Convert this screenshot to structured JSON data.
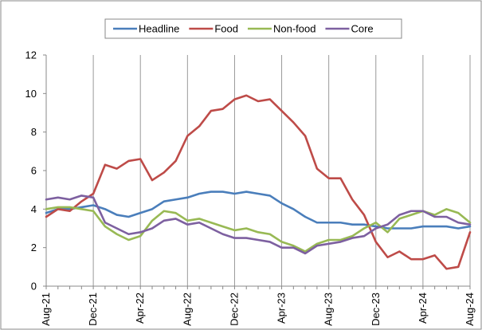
{
  "chart_data": {
    "type": "line",
    "title": "",
    "xlabel": "",
    "ylabel": "",
    "ylim": [
      0,
      12
    ],
    "yticks": [
      0,
      2,
      4,
      6,
      8,
      10,
      12
    ],
    "grid": "vertical",
    "legend": "top-center",
    "x": [
      "Aug-21",
      "Sep-21",
      "Oct-21",
      "Nov-21",
      "Dec-21",
      "Jan-22",
      "Feb-22",
      "Mar-22",
      "Apr-22",
      "May-22",
      "Jun-22",
      "Jul-22",
      "Aug-22",
      "Sep-22",
      "Oct-22",
      "Nov-22",
      "Dec-22",
      "Jan-23",
      "Feb-23",
      "Mar-23",
      "Apr-23",
      "May-23",
      "Jun-23",
      "Jul-23",
      "Aug-23",
      "Sep-23",
      "Oct-23",
      "Nov-23",
      "Dec-23",
      "Jan-24",
      "Feb-24",
      "Mar-24",
      "Apr-24",
      "May-24",
      "Jun-24",
      "Jul-24",
      "Aug-24"
    ],
    "x_tick_labels": [
      "Aug-21",
      "Dec-21",
      "Apr-22",
      "Aug-22",
      "Dec-22",
      "Apr-23",
      "Aug-23",
      "Dec-23",
      "Apr-24",
      "Aug-24"
    ],
    "series": [
      {
        "name": "Headline",
        "color": "#4a7ebb",
        "values": [
          3.8,
          4.0,
          4.0,
          4.1,
          4.2,
          4.0,
          3.7,
          3.6,
          3.8,
          4.0,
          4.4,
          4.5,
          4.6,
          4.8,
          4.9,
          4.9,
          4.8,
          4.9,
          4.8,
          4.7,
          4.3,
          4.0,
          3.6,
          3.3,
          3.3,
          3.3,
          3.2,
          3.2,
          3.1,
          3.0,
          3.0,
          3.0,
          3.1,
          3.1,
          3.1,
          3.0,
          3.1
        ]
      },
      {
        "name": "Food",
        "color": "#be4b48",
        "values": [
          3.6,
          4.0,
          3.9,
          4.4,
          4.8,
          6.3,
          6.1,
          6.5,
          6.6,
          5.5,
          5.9,
          6.5,
          7.8,
          8.3,
          9.1,
          9.2,
          9.7,
          9.9,
          9.6,
          9.7,
          9.1,
          8.5,
          7.8,
          6.1,
          5.6,
          5.6,
          4.5,
          3.7,
          2.3,
          1.5,
          1.8,
          1.4,
          1.4,
          1.6,
          0.9,
          1.0,
          2.8
        ]
      },
      {
        "name": "Non-food",
        "color": "#98b954",
        "values": [
          4.0,
          4.1,
          4.1,
          4.0,
          3.9,
          3.1,
          2.7,
          2.4,
          2.6,
          3.4,
          3.9,
          3.8,
          3.4,
          3.5,
          3.3,
          3.1,
          2.9,
          3.0,
          2.8,
          2.7,
          2.3,
          2.1,
          1.8,
          2.2,
          2.4,
          2.4,
          2.6,
          3.0,
          3.3,
          2.8,
          3.5,
          3.7,
          3.9,
          3.7,
          4.0,
          3.8,
          3.3
        ]
      },
      {
        "name": "Core",
        "color": "#7d60a0",
        "values": [
          4.5,
          4.6,
          4.5,
          4.7,
          4.6,
          3.3,
          3.0,
          2.7,
          2.8,
          3.0,
          3.4,
          3.5,
          3.2,
          3.3,
          3.0,
          2.7,
          2.5,
          2.5,
          2.4,
          2.3,
          2.0,
          2.0,
          1.7,
          2.1,
          2.2,
          2.3,
          2.5,
          2.6,
          3.0,
          3.2,
          3.7,
          3.9,
          3.9,
          3.6,
          3.6,
          3.3,
          3.2
        ]
      }
    ]
  }
}
